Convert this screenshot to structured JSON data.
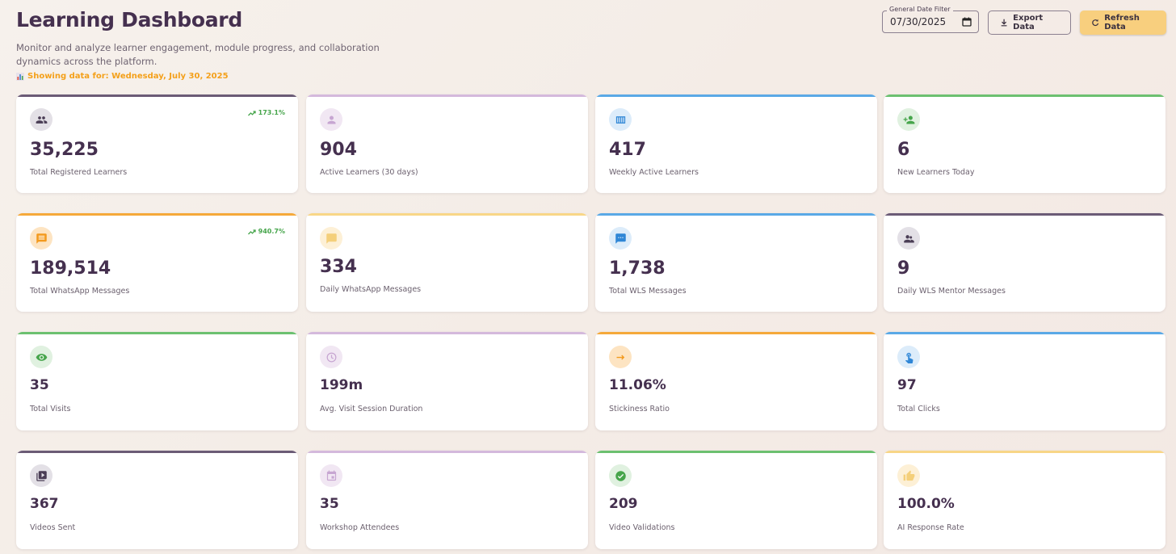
{
  "header": {
    "title": "Learning Dashboard",
    "subtitle": "Monitor and analyze learner engagement, module progress, and collaboration dynamics across the platform.",
    "showing": "Showing data for: Wednesday, July 30, 2025"
  },
  "controls": {
    "date_label": "General Date Filter",
    "date_value": "07/30/2025",
    "export_label": "Export Data",
    "refresh_label": "Refresh Data"
  },
  "cards": [
    {
      "value": "35,225",
      "label": "Total Registered Learners",
      "trend": "173.1%",
      "icon": "group-icon",
      "accent": "#6b5b76"
    },
    {
      "value": "904",
      "label": "Active Learners (30 days)",
      "icon": "person-icon",
      "accent": "#d4b9dc"
    },
    {
      "value": "417",
      "label": "Weekly Active Learners",
      "icon": "calendar-view-icon",
      "accent": "#5aa9e6"
    },
    {
      "value": "6",
      "label": "New Learners Today",
      "icon": "person-add-icon",
      "accent": "#6cc070"
    },
    {
      "value": "189,514",
      "label": "Total WhatsApp Messages",
      "trend": "940.7%",
      "icon": "message-icon",
      "accent": "#f5a93a"
    },
    {
      "value": "334",
      "label": "Daily WhatsApp Messages",
      "icon": "chat-bubble-icon",
      "accent": "#f8d687"
    },
    {
      "value": "1,738",
      "label": "Total WLS Messages",
      "icon": "sms-icon",
      "accent": "#5aa9e6"
    },
    {
      "value": "9",
      "label": "Daily WLS Mentor Messages",
      "icon": "people-icon",
      "accent": "#6b5b76"
    },
    {
      "value": "35",
      "label": "Total Visits",
      "icon": "eye-icon",
      "accent": "#6cc070"
    },
    {
      "value": "199m",
      "label": "Avg. Visit Session Duration",
      "icon": "clock-icon",
      "accent": "#d4b9dc"
    },
    {
      "value": "11.06%",
      "label": "Stickiness Ratio",
      "icon": "arrow-right-icon",
      "accent": "#f5a93a"
    },
    {
      "value": "97",
      "label": "Total Clicks",
      "icon": "touch-icon",
      "accent": "#5aa9e6"
    },
    {
      "value": "367",
      "label": "Videos Sent",
      "icon": "video-library-icon",
      "accent": "#6b5b76"
    },
    {
      "value": "35",
      "label": "Workshop Attendees",
      "icon": "event-icon",
      "accent": "#d4b9dc"
    },
    {
      "value": "209",
      "label": "Video Validations",
      "icon": "check-circle-icon",
      "accent": "#6cc070"
    },
    {
      "value": "100.0%",
      "label": "AI Response Rate",
      "icon": "thumb-up-icon",
      "accent": "#f8d687"
    }
  ]
}
